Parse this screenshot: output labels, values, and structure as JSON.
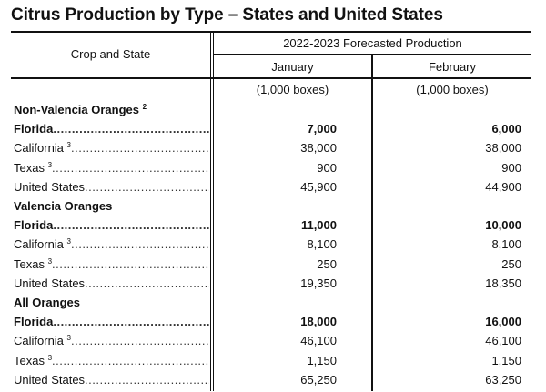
{
  "title": "Citrus Production by Type – States and United States",
  "header": {
    "crop_state": "Crop and State",
    "group": "2022-2023 Forecasted Production",
    "col1": "January",
    "col2": "February",
    "unit1": "(1,000 boxes)",
    "unit2": "(1,000 boxes)"
  },
  "dots": "............................................................",
  "groups": [
    {
      "label": "Non-Valencia Oranges",
      "sup": "2",
      "rows": [
        {
          "state": "Florida",
          "sup": "",
          "january": "7,000",
          "february": "6,000",
          "bold": true
        },
        {
          "state": "California",
          "sup": "3",
          "january": "38,000",
          "february": "38,000",
          "bold": false
        },
        {
          "state": "Texas",
          "sup": "3",
          "january": "900",
          "february": "900",
          "bold": false
        },
        {
          "state": "United States",
          "sup": "",
          "january": "45,900",
          "february": "44,900",
          "bold": false
        }
      ]
    },
    {
      "label": "Valencia Oranges",
      "sup": "",
      "rows": [
        {
          "state": "Florida",
          "sup": "",
          "january": "11,000",
          "february": "10,000",
          "bold": true
        },
        {
          "state": "California",
          "sup": "3",
          "january": "8,100",
          "february": "8,100",
          "bold": false
        },
        {
          "state": "Texas",
          "sup": "3",
          "january": "250",
          "february": "250",
          "bold": false
        },
        {
          "state": "United States",
          "sup": "",
          "january": "19,350",
          "february": "18,350",
          "bold": false
        }
      ]
    },
    {
      "label": "All Oranges",
      "sup": "",
      "rows": [
        {
          "state": "Florida",
          "sup": "",
          "january": "18,000",
          "february": "16,000",
          "bold": true
        },
        {
          "state": "California",
          "sup": "3",
          "january": "46,100",
          "february": "46,100",
          "bold": false
        },
        {
          "state": "Texas",
          "sup": "3",
          "january": "1,150",
          "february": "1,150",
          "bold": false
        },
        {
          "state": "United States",
          "sup": "",
          "january": "65,250",
          "february": "63,250",
          "bold": false
        }
      ]
    }
  ]
}
